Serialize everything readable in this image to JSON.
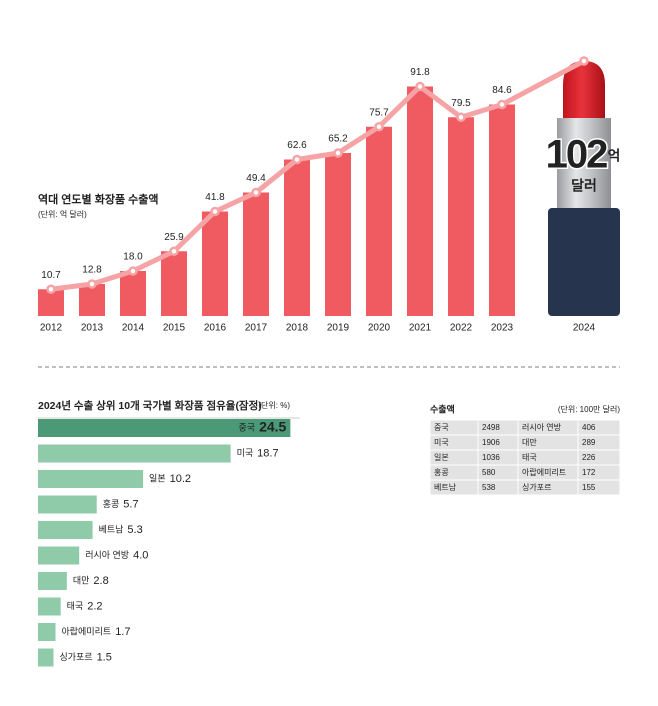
{
  "chart_data": [
    {
      "type": "bar-line",
      "title": "역대 연도별 화장품 수출액",
      "unit": "(단위: 억 달러)",
      "categories": [
        "2012",
        "2013",
        "2014",
        "2015",
        "2016",
        "2017",
        "2018",
        "2019",
        "2020",
        "2021",
        "2022",
        "2023",
        "2024"
      ],
      "values": [
        10.7,
        12.8,
        18.0,
        25.9,
        41.8,
        49.4,
        62.6,
        65.2,
        75.7,
        91.8,
        79.5,
        84.6,
        102
      ],
      "value_labels": [
        "10.7",
        "12.8",
        "18.0",
        "25.9",
        "41.8",
        "49.4",
        "62.6",
        "65.2",
        "75.7",
        "91.8",
        "79.5",
        "84.6",
        "102"
      ],
      "highlight_unit": "억",
      "highlight_currency": "달러",
      "color": "#ef5b60",
      "line_color": "#f6a3a6"
    },
    {
      "type": "hbar",
      "title": "2024년 수출 상위 10개 국가별 화장품 점유율(잠정)",
      "unit": "(단위: %)",
      "categories": [
        "중국",
        "미국",
        "일본",
        "홍콩",
        "베트남",
        "러시아 연방",
        "대만",
        "태국",
        "아랍에미리트",
        "싱가포르"
      ],
      "values": [
        24.5,
        18.7,
        10.2,
        5.7,
        5.3,
        4.0,
        2.8,
        2.2,
        1.7,
        1.5
      ],
      "value_labels": [
        "24.5",
        "18.7",
        "10.2",
        "5.7",
        "5.3",
        "4.0",
        "2.8",
        "2.2",
        "1.7",
        "1.5"
      ],
      "color": "#8fcaa9",
      "highlight_color": "#4a9a78"
    }
  ],
  "table": {
    "title": "수출액",
    "unit": "(단위: 100만 달러)",
    "rows": [
      [
        "중국",
        "2498",
        "러시아 연방",
        "406"
      ],
      [
        "미국",
        "1906",
        "대만",
        "289"
      ],
      [
        "일본",
        "1036",
        "태국",
        "226"
      ],
      [
        "홍콩",
        "580",
        "아랍에미리트",
        "172"
      ],
      [
        "베트남",
        "538",
        "싱가포르",
        "155"
      ]
    ]
  }
}
